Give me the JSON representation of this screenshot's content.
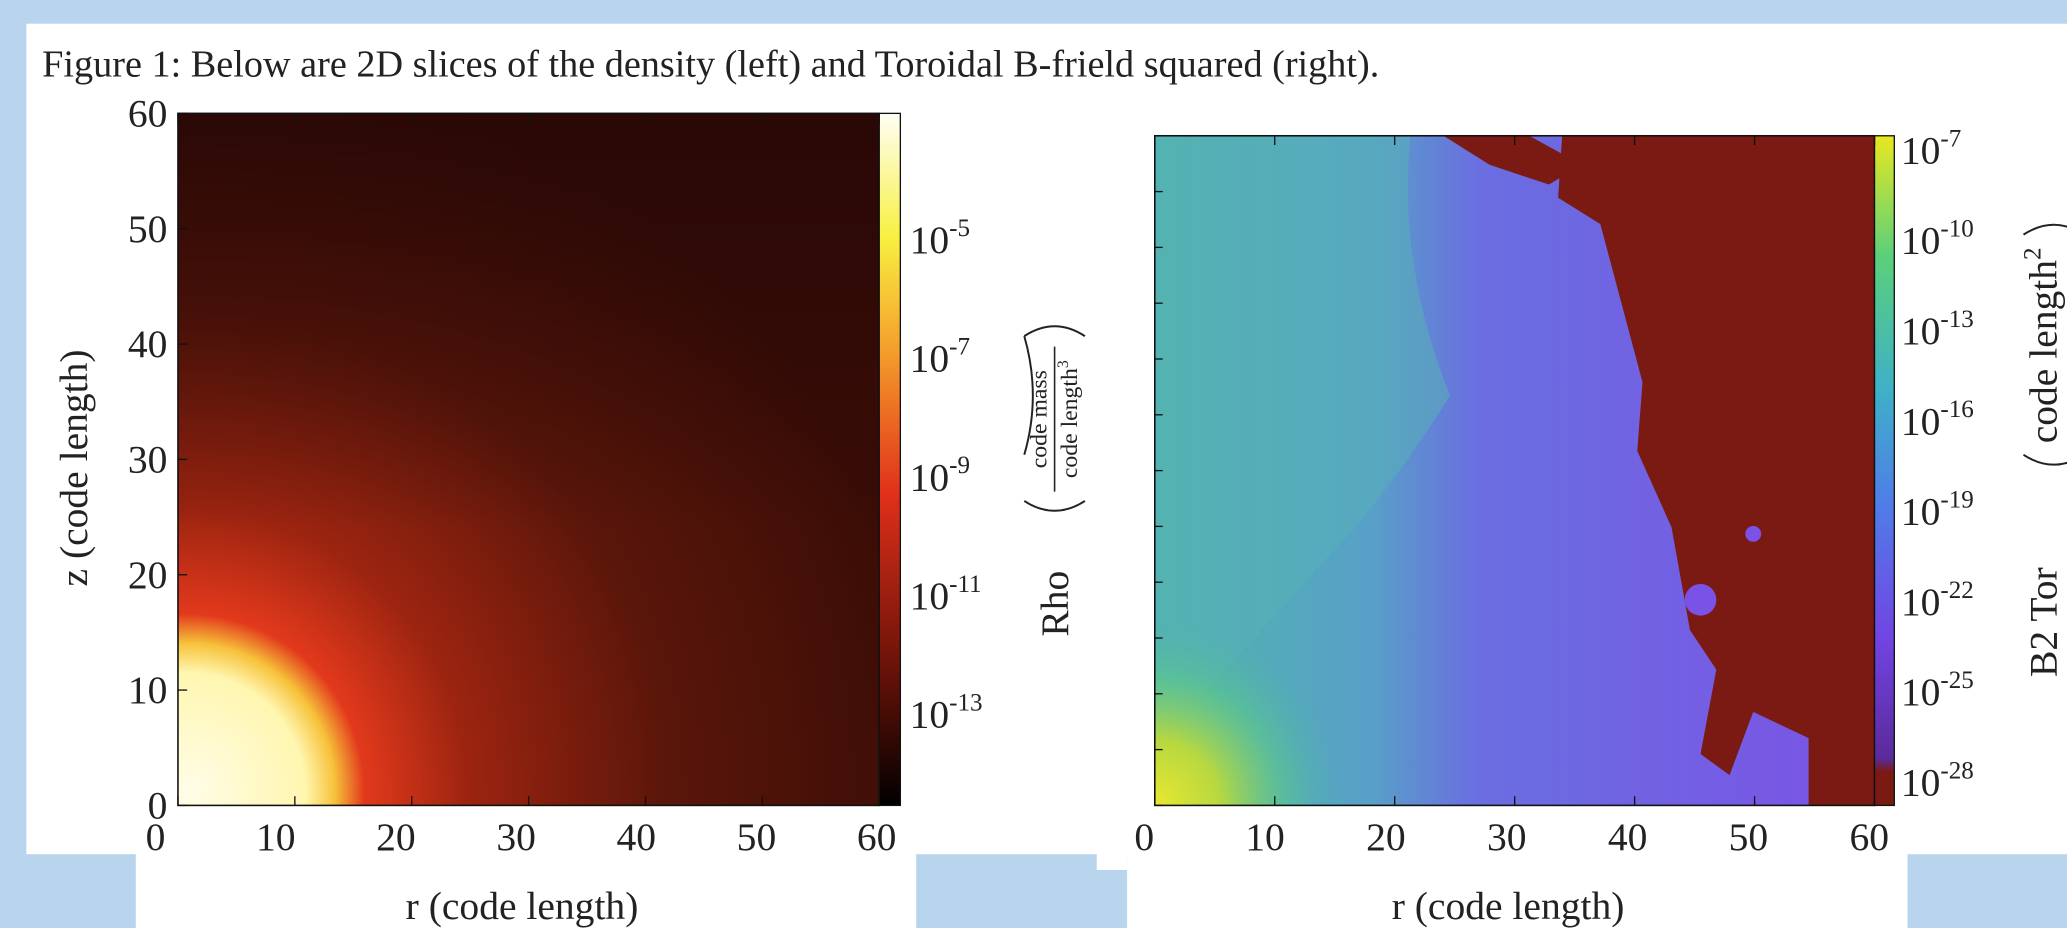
{
  "header": {
    "title": "Figure 1: Below are 2D slices of the density (left) and Toroidal B-frield squared (right)."
  },
  "panels": [
    {
      "y_label": "z  (code length)",
      "x_label": "r  (code length)",
      "y_ticks": [
        "60",
        "50",
        "40",
        "30",
        "20",
        "10",
        "0"
      ],
      "x_ticks": [
        "0",
        "10",
        "20",
        "30",
        "40",
        "50",
        "60"
      ],
      "colorbar": {
        "label": "Rho",
        "unit_numerator": "code mass",
        "unit_denominator": "code length",
        "unit_exponent": "3",
        "ticks": [
          {
            "base": "10",
            "exponent": "-5"
          },
          {
            "base": "10",
            "exponent": "-7"
          },
          {
            "base": "10",
            "exponent": "-9"
          },
          {
            "base": "10",
            "exponent": "-11"
          },
          {
            "base": "10",
            "exponent": "-13"
          }
        ]
      }
    },
    {
      "x_label": "r  (code length)",
      "x_ticks": [
        "0",
        "10",
        "20",
        "30",
        "40",
        "50",
        "60"
      ],
      "colorbar": {
        "label": "B2 Tor",
        "unit": "code length",
        "unit_exponent": "2",
        "ticks": [
          {
            "base": "10",
            "exponent": "-7"
          },
          {
            "base": "10",
            "exponent": "-10"
          },
          {
            "base": "10",
            "exponent": "-13"
          },
          {
            "base": "10",
            "exponent": "-16"
          },
          {
            "base": "10",
            "exponent": "-19"
          },
          {
            "base": "10",
            "exponent": "-22"
          },
          {
            "base": "10",
            "exponent": "-25"
          },
          {
            "base": "10",
            "exponent": "-28"
          }
        ]
      }
    }
  ]
}
